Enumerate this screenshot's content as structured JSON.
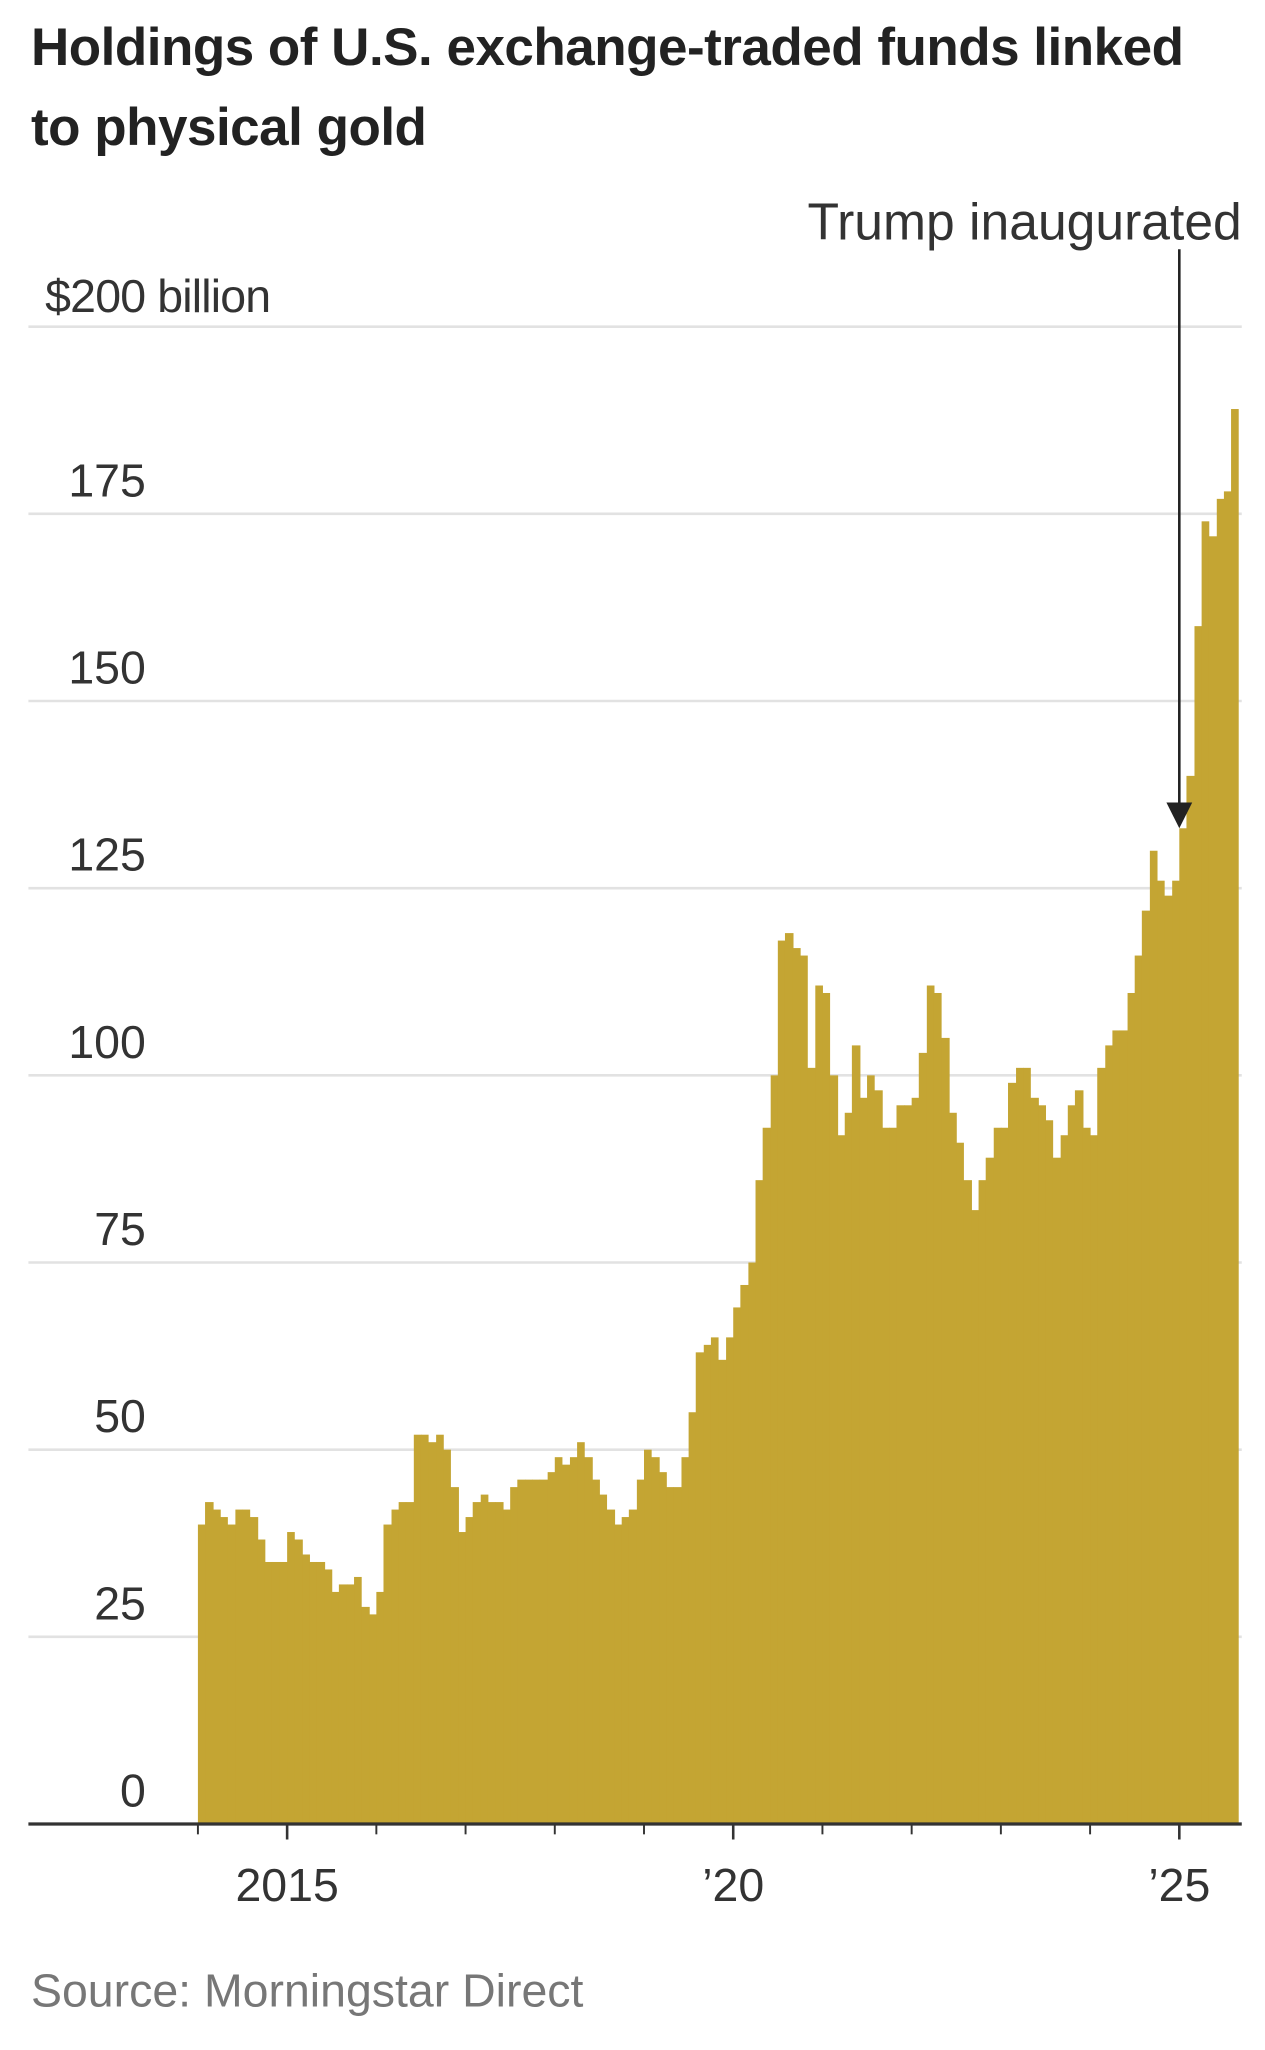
{
  "chart_data": {
    "type": "bar",
    "title": "Holdings of U.S. exchange-traded funds linked to physical gold",
    "source": "Source: Morningstar Direct",
    "annotation": {
      "text": "Trump inaugurated",
      "x": 2025.0,
      "y": 133
    },
    "color": "#c4a533",
    "grid": true,
    "xlim": [
      2012.1,
      2025.7
    ],
    "ylim": [
      0,
      200
    ],
    "yticks": [
      0,
      25,
      50,
      75,
      100,
      125,
      150,
      175,
      {
        "value": 200,
        "label": "$200 billion"
      }
    ],
    "xticks": [
      {
        "value": 2015,
        "label": "2015"
      },
      {
        "value": 2020,
        "label": "’20"
      },
      {
        "value": 2025,
        "label": "’25"
      }
    ],
    "xminorticks": [
      2014,
      2016,
      2017,
      2018,
      2019,
      2021,
      2022,
      2023,
      2024
    ],
    "x": [
      2014.0,
      2014.08,
      2014.17,
      2014.25,
      2014.33,
      2014.42,
      2014.5,
      2014.58,
      2014.67,
      2014.75,
      2014.83,
      2014.92,
      2015.0,
      2015.08,
      2015.17,
      2015.25,
      2015.33,
      2015.42,
      2015.5,
      2015.58,
      2015.67,
      2015.75,
      2015.83,
      2015.92,
      2016.0,
      2016.08,
      2016.17,
      2016.25,
      2016.33,
      2016.42,
      2016.5,
      2016.58,
      2016.67,
      2016.75,
      2016.83,
      2016.92,
      2017.0,
      2017.08,
      2017.17,
      2017.25,
      2017.33,
      2017.42,
      2017.5,
      2017.58,
      2017.67,
      2017.75,
      2017.83,
      2017.92,
      2018.0,
      2018.08,
      2018.17,
      2018.25,
      2018.33,
      2018.42,
      2018.5,
      2018.58,
      2018.67,
      2018.75,
      2018.83,
      2018.92,
      2019.0,
      2019.08,
      2019.17,
      2019.25,
      2019.33,
      2019.42,
      2019.5,
      2019.58,
      2019.67,
      2019.75,
      2019.83,
      2019.92,
      2020.0,
      2020.08,
      2020.17,
      2020.25,
      2020.33,
      2020.42,
      2020.5,
      2020.58,
      2020.67,
      2020.75,
      2020.83,
      2020.92,
      2021.0,
      2021.08,
      2021.17,
      2021.25,
      2021.33,
      2021.42,
      2021.5,
      2021.58,
      2021.67,
      2021.75,
      2021.83,
      2021.92,
      2022.0,
      2022.08,
      2022.17,
      2022.25,
      2022.33,
      2022.42,
      2022.5,
      2022.58,
      2022.67,
      2022.75,
      2022.83,
      2022.92,
      2023.0,
      2023.08,
      2023.17,
      2023.25,
      2023.33,
      2023.42,
      2023.5,
      2023.58,
      2023.67,
      2023.75,
      2023.83,
      2023.92,
      2024.0,
      2024.08,
      2024.17,
      2024.25,
      2024.33,
      2024.42,
      2024.5,
      2024.58,
      2024.67,
      2024.75,
      2024.83,
      2024.92,
      2025.0,
      2025.08,
      2025.17,
      2025.25,
      2025.33,
      2025.42,
      2025.5,
      2025.58
    ],
    "values": [
      40,
      43,
      42,
      41,
      40,
      42,
      42,
      41,
      38,
      35,
      35,
      35,
      39,
      38,
      36,
      35,
      35,
      34,
      31,
      32,
      32,
      33,
      29,
      28,
      31,
      40,
      42,
      43,
      43,
      52,
      52,
      51,
      52,
      50,
      45,
      39,
      41,
      43,
      44,
      43,
      43,
      42,
      45,
      46,
      46,
      46,
      46,
      47,
      49,
      48,
      49,
      51,
      49,
      46,
      44,
      42,
      40,
      41,
      42,
      46,
      50,
      49,
      47,
      45,
      45,
      49,
      55,
      63,
      64,
      65,
      62,
      65,
      69,
      72,
      75,
      86,
      93,
      100,
      118,
      119,
      117,
      116,
      101,
      112,
      111,
      100,
      92,
      95,
      104,
      97,
      100,
      98,
      93,
      93,
      96,
      96,
      97,
      103,
      112,
      111,
      105,
      95,
      91,
      86,
      82,
      86,
      89,
      93,
      93,
      99,
      101,
      101,
      97,
      96,
      94,
      89,
      92,
      96,
      98,
      93,
      92,
      101,
      104,
      106,
      106,
      111,
      116,
      122,
      130,
      126,
      124,
      126,
      133,
      140,
      160,
      174,
      172,
      177,
      178,
      189
    ]
  }
}
